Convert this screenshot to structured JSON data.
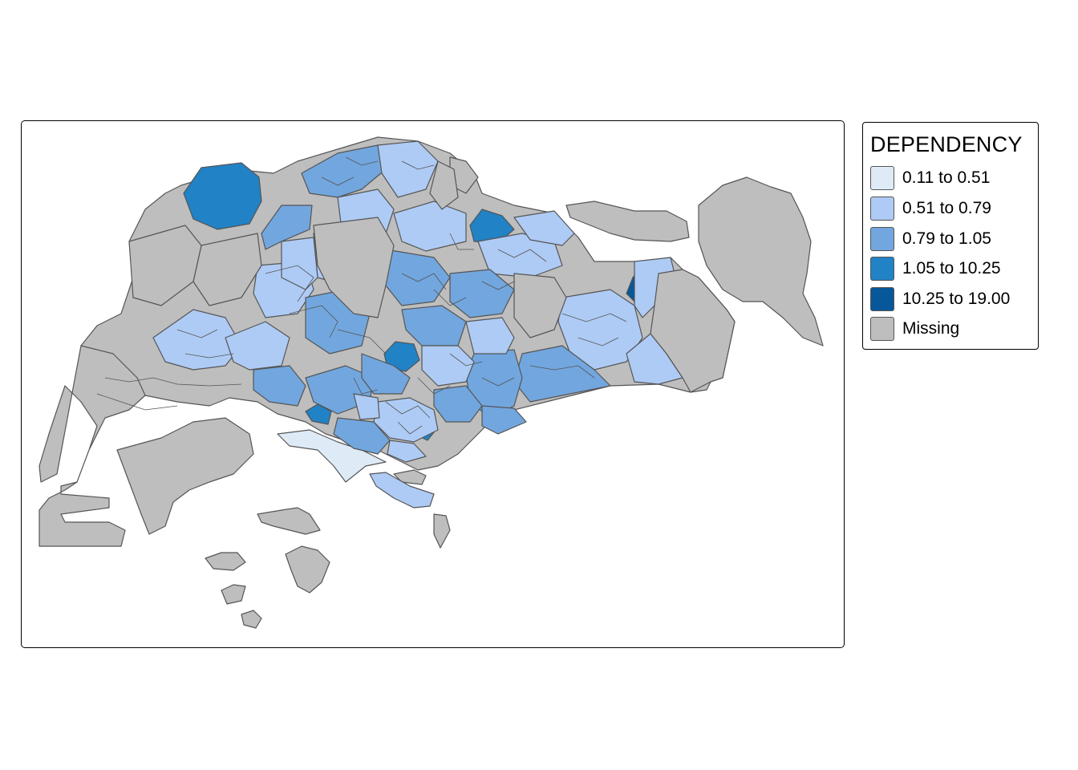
{
  "legend": {
    "title": "DEPENDENCY",
    "classes": [
      {
        "label": "0.11 to 0.51",
        "color": "#deebf7",
        "min": 0.11,
        "max": 0.51
      },
      {
        "label": "0.51 to 0.79",
        "color": "#aecbf5",
        "min": 0.51,
        "max": 0.79
      },
      {
        "label": "0.79 to 1.05",
        "color": "#72a6de",
        "min": 0.79,
        "max": 1.05
      },
      {
        "label": "1.05 to 10.25",
        "color": "#2182c6",
        "min": 1.05,
        "max": 10.25
      },
      {
        "label": "10.25 to 19.00",
        "color": "#08579a",
        "min": 10.25,
        "max": 19.0
      },
      {
        "label": "Missing",
        "color": "#bebebe"
      }
    ]
  },
  "colors": {
    "missing": "#bebebe",
    "border": "#555555",
    "frame": "#000000",
    "background": "#ffffff"
  }
}
